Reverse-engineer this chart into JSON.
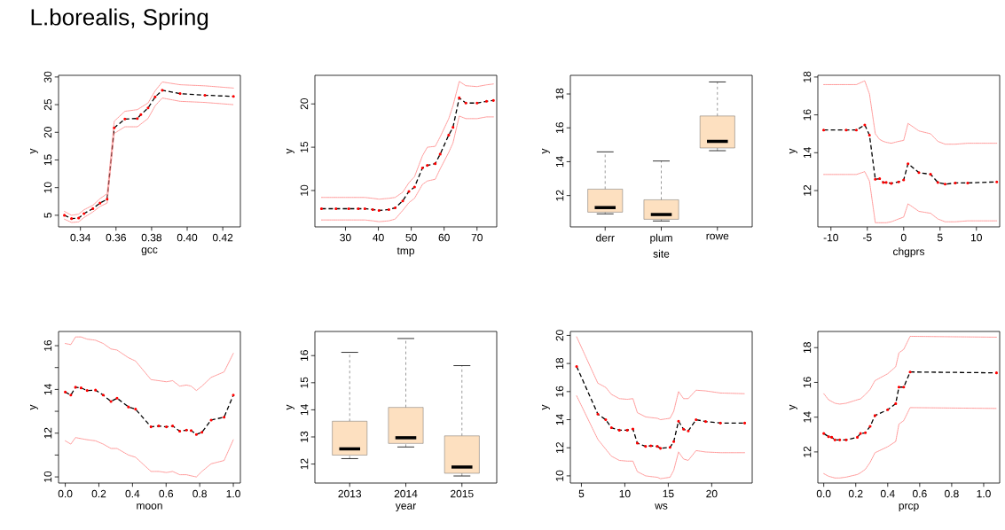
{
  "chart_data": [
    {
      "type": "line",
      "title": "L.borealis, Spring",
      "xlabel": "gcc",
      "ylabel": "y",
      "xlim": [
        0.3277,
        0.4299
      ],
      "ylim": [
        2.9,
        30.3
      ],
      "xticks": [
        0.34,
        0.36,
        0.38,
        {
          "value": 0.4,
          "label": "0.40"
        },
        0.42
      ],
      "yticks": [
        5,
        10,
        15,
        20,
        25,
        30
      ],
      "line_style": "dashed",
      "marker": "circle",
      "series": [
        {
          "color": "#000000",
          "x": [
            0.331,
            0.335,
            0.339,
            0.342,
            0.347,
            0.351,
            0.355,
            0.359,
            0.365,
            0.372,
            0.374,
            0.378,
            0.382,
            0.386,
            0.396,
            0.41,
            0.426
          ],
          "values": [
            5.0,
            4.4,
            4.5,
            5.3,
            6.2,
            7.2,
            7.9,
            20.8,
            22.4,
            22.5,
            23.2,
            24.4,
            26.4,
            27.6,
            27.0,
            26.7,
            26.5
          ]
        },
        {
          "color": "#ff8080",
          "line_style": "dotted",
          "marker": "none",
          "x": [
            0.331,
            0.335,
            0.339,
            0.342,
            0.347,
            0.351,
            0.355,
            0.359,
            0.365,
            0.372,
            0.374,
            0.378,
            0.382,
            0.386,
            0.396,
            0.41,
            0.426
          ],
          "values": [
            5.7,
            5.0,
            5.2,
            6.0,
            6.8,
            8.0,
            8.9,
            22.0,
            23.8,
            24.1,
            24.5,
            25.3,
            27.5,
            29.1,
            28.6,
            28.4,
            28.0
          ]
        },
        {
          "color": "#ff8080",
          "line_style": "dotted",
          "marker": "none",
          "x": [
            0.331,
            0.335,
            0.339,
            0.342,
            0.347,
            0.351,
            0.355,
            0.359,
            0.365,
            0.372,
            0.374,
            0.378,
            0.382,
            0.386,
            0.396,
            0.41,
            0.426
          ],
          "values": [
            4.3,
            3.7,
            3.8,
            4.6,
            5.6,
            6.6,
            7.2,
            19.8,
            21.0,
            21.0,
            21.5,
            22.5,
            24.8,
            26.2,
            25.6,
            25.4,
            25.0
          ]
        }
      ]
    },
    {
      "type": "line",
      "xlabel": "tmp",
      "ylabel": "y",
      "xlim": [
        20.7,
        76
      ],
      "ylim": [
        5.8,
        23.3
      ],
      "xticks": [
        30,
        40,
        50,
        60,
        70
      ],
      "yticks": [
        10,
        15,
        20
      ],
      "line_style": "dashed",
      "marker": "circle",
      "series": [
        {
          "color": "#000000",
          "x": [
            22.7,
            27.1,
            31,
            33.9,
            35.9,
            38.3,
            40.2,
            43.2,
            45.1,
            47.4,
            49.3,
            51,
            53.4,
            54.9,
            57.3,
            58.8,
            61.4,
            62.7,
            64.6,
            66.6,
            70,
            72.9,
            75
          ],
          "values": [
            7.9,
            7.9,
            7.9,
            7.9,
            7.9,
            7.8,
            7.7,
            7.8,
            8.0,
            8.8,
            9.9,
            10.4,
            12.6,
            12.9,
            13.1,
            14.2,
            16.4,
            17.3,
            20.7,
            20.1,
            20.1,
            20.3,
            20.4
          ]
        },
        {
          "color": "#ff8080",
          "line_style": "dotted",
          "marker": "none",
          "x": [
            22.7,
            27.1,
            31,
            33.9,
            35.9,
            38.3,
            40.2,
            43.2,
            45.1,
            47.4,
            49.3,
            51,
            53.4,
            54.9,
            57.3,
            58.8,
            61.4,
            62.7,
            64.6,
            66.6,
            70,
            72.9,
            75
          ],
          "values": [
            9.2,
            9.2,
            9.2,
            9.2,
            9.2,
            9.1,
            9.0,
            9.1,
            9.2,
            9.8,
            10.9,
            11.6,
            14.0,
            15.0,
            15.1,
            16.2,
            18.3,
            19.8,
            22.6,
            22.1,
            22.0,
            22.2,
            22.3
          ]
        },
        {
          "color": "#ff8080",
          "line_style": "dotted",
          "marker": "none",
          "x": [
            22.7,
            27.1,
            31,
            33.9,
            35.9,
            38.3,
            40.2,
            43.2,
            45.1,
            47.4,
            49.3,
            51,
            53.4,
            54.9,
            57.3,
            58.8,
            61.4,
            62.7,
            64.6,
            66.6,
            70,
            72.9,
            75
          ],
          "values": [
            6.6,
            6.6,
            6.6,
            6.6,
            6.6,
            6.5,
            6.4,
            6.5,
            6.7,
            7.7,
            8.6,
            9.1,
            10.7,
            11.1,
            11.3,
            12.5,
            14.4,
            15.5,
            18.6,
            18.3,
            18.3,
            18.5,
            18.5
          ]
        }
      ]
    },
    {
      "type": "box",
      "xlabel": "site",
      "ylabel": "y",
      "categories": [
        "derr",
        "plum",
        "rowe"
      ],
      "ylim": [
        10.15,
        19.1
      ],
      "yticks": [
        12,
        14,
        16,
        18
      ],
      "color": "#fde0c0",
      "boxes": [
        {
          "low": 10.92,
          "q1": 11.02,
          "median": 11.29,
          "q3": 12.38,
          "high": 14.58
        },
        {
          "low": 10.5,
          "q1": 10.6,
          "median": 10.88,
          "q3": 11.75,
          "high": 14.04
        },
        {
          "low": 14.65,
          "q1": 14.81,
          "median": 15.2,
          "q3": 16.7,
          "high": 18.71
        }
      ]
    },
    {
      "type": "line",
      "xlabel": "chgprs",
      "ylabel": "y",
      "xlim": [
        -11.8,
        13.2
      ],
      "ylim": [
        10.08,
        18.09
      ],
      "xticks": [
        -10,
        -5,
        0,
        5,
        10
      ],
      "yticks": [
        12,
        14,
        16,
        18
      ],
      "line_style": "dashed",
      "marker": "circle",
      "series": [
        {
          "color": "#000000",
          "x": [
            -11,
            -7.9,
            -6.5,
            -5.35,
            -4.7,
            -3.9,
            -3.3,
            -2.8,
            -2.4,
            -1.7,
            -0.7,
            0,
            0.6,
            2.1,
            3.7,
            4.7,
            5.7,
            7.1,
            8.8,
            12.8
          ],
          "values": [
            15.2,
            15.2,
            15.2,
            15.47,
            14.93,
            12.6,
            12.63,
            12.43,
            12.43,
            12.38,
            12.46,
            12.56,
            13.42,
            12.95,
            12.86,
            12.43,
            12.34,
            12.4,
            12.4,
            12.46
          ]
        },
        {
          "color": "#ff8080",
          "line_style": "dotted",
          "marker": "none",
          "x": [
            -11,
            -7.9,
            -6.5,
            -5.35,
            -4.7,
            -3.9,
            -3.3,
            -2.8,
            -2.4,
            -1.7,
            -0.7,
            0,
            0.6,
            2.1,
            3.7,
            4.7,
            5.7,
            7.1,
            8.8,
            12.8
          ],
          "values": [
            17.6,
            17.6,
            17.6,
            17.8,
            17.1,
            15.0,
            14.7,
            14.6,
            14.55,
            14.5,
            14.6,
            14.65,
            15.55,
            15.15,
            15.0,
            14.6,
            14.45,
            14.45,
            14.5,
            14.5
          ]
        },
        {
          "color": "#ff8080",
          "line_style": "dotted",
          "marker": "none",
          "x": [
            -11,
            -7.9,
            -6.5,
            -5.35,
            -4.7,
            -3.9,
            -3.3,
            -2.8,
            -2.4,
            -1.7,
            -0.7,
            0,
            0.6,
            2.1,
            3.7,
            4.7,
            5.7,
            7.1,
            8.8,
            12.8
          ],
          "values": [
            12.85,
            12.85,
            12.85,
            13.0,
            12.5,
            10.3,
            10.3,
            10.3,
            10.3,
            10.35,
            10.5,
            10.6,
            11.3,
            10.9,
            10.8,
            10.5,
            10.35,
            10.35,
            10.4,
            10.4
          ]
        }
      ]
    },
    {
      "type": "line",
      "xlabel": "moon",
      "ylabel": "y",
      "xlim": [
        -0.04,
        1.042
      ],
      "ylim": [
        9.72,
        16.65
      ],
      "xticks": [
        {
          "value": 0,
          "label": "0.0"
        },
        0.2,
        0.4,
        0.6,
        0.8,
        {
          "value": 1,
          "label": "1.0"
        }
      ],
      "yticks": [
        10,
        {
          "value": 11,
          "label": null
        },
        12,
        {
          "value": 13,
          "label": null
        },
        14,
        {
          "value": 15,
          "label": null
        },
        16
      ],
      "line_style": "dashed",
      "marker": "circle",
      "series": [
        {
          "color": "#000000",
          "x": [
            0,
            0.033,
            0.061,
            0.094,
            0.13,
            0.18,
            0.226,
            0.272,
            0.308,
            0.376,
            0.418,
            0.51,
            0.556,
            0.602,
            0.639,
            0.681,
            0.721,
            0.749,
            0.78,
            0.813,
            0.868,
            0.945,
            1.0
          ],
          "values": [
            13.88,
            13.74,
            14.1,
            14.07,
            13.95,
            13.97,
            13.74,
            13.45,
            13.6,
            13.2,
            13.1,
            12.29,
            12.33,
            12.29,
            12.33,
            12.09,
            12.14,
            12.12,
            11.94,
            12.04,
            12.6,
            12.73,
            13.74
          ]
        },
        {
          "color": "#ff8080",
          "line_style": "dotted",
          "marker": "none",
          "x": [
            0,
            0.033,
            0.061,
            0.094,
            0.13,
            0.18,
            0.226,
            0.272,
            0.308,
            0.376,
            0.418,
            0.51,
            0.556,
            0.602,
            0.639,
            0.681,
            0.721,
            0.749,
            0.78,
            0.813,
            0.868,
            0.945,
            1.0
          ],
          "values": [
            16.1,
            16.05,
            16.4,
            16.4,
            16.3,
            16.25,
            16.1,
            15.85,
            15.8,
            15.45,
            15.3,
            14.45,
            14.4,
            14.35,
            14.4,
            14.15,
            14.2,
            14.15,
            13.95,
            14.15,
            14.55,
            14.8,
            15.65
          ]
        },
        {
          "color": "#ff8080",
          "line_style": "dotted",
          "marker": "none",
          "x": [
            0,
            0.033,
            0.061,
            0.094,
            0.13,
            0.18,
            0.226,
            0.272,
            0.308,
            0.376,
            0.418,
            0.51,
            0.556,
            0.602,
            0.639,
            0.681,
            0.721,
            0.749,
            0.78,
            0.813,
            0.868,
            0.945,
            1.0
          ],
          "values": [
            11.65,
            11.5,
            11.8,
            11.75,
            11.7,
            11.65,
            11.5,
            11.3,
            11.3,
            11.0,
            10.9,
            10.25,
            10.25,
            10.2,
            10.25,
            10.1,
            10.1,
            10.05,
            10.0,
            10.25,
            10.6,
            10.75,
            11.7
          ]
        }
      ]
    },
    {
      "type": "box",
      "xlabel": "year",
      "ylabel": "y",
      "categories": [
        "2013",
        "2014",
        "2015"
      ],
      "ylim": [
        11.3,
        16.89
      ],
      "yticks": [
        12,
        13,
        14,
        15,
        16
      ],
      "color": "#fde0c0",
      "boxes": [
        {
          "low": 12.2,
          "q1": 12.33,
          "median": 12.56,
          "q3": 13.58,
          "high": 16.12
        },
        {
          "low": 12.63,
          "q1": 12.76,
          "median": 12.97,
          "q3": 14.09,
          "high": 16.63
        },
        {
          "low": 11.56,
          "q1": 11.66,
          "median": 11.89,
          "q3": 13.04,
          "high": 15.63
        }
      ]
    },
    {
      "type": "line",
      "xlabel": "ws",
      "ylabel": "y",
      "xlim": [
        3.73,
        24.66
      ],
      "ylim": [
        9.49,
        20.28
      ],
      "xticks": [
        5,
        10,
        15,
        20
      ],
      "yticks": [
        10,
        12,
        14,
        16,
        18,
        20
      ],
      "line_style": "dashed",
      "marker": "circle",
      "series": [
        {
          "color": "#000000",
          "x": [
            4.45,
            6.89,
            7.8,
            8.46,
            9.37,
            10.28,
            10.93,
            11.44,
            12.39,
            13.0,
            13.74,
            14.1,
            15.2,
            15.63,
            16.18,
            16.76,
            17.3,
            18.2,
            19.3,
            21.0,
            23.8
          ],
          "values": [
            17.79,
            14.4,
            14.0,
            13.43,
            13.25,
            13.25,
            13.34,
            12.33,
            12.1,
            12.14,
            12.1,
            11.96,
            12.03,
            12.44,
            13.89,
            13.32,
            13.2,
            14.0,
            13.87,
            13.76,
            13.76
          ]
        },
        {
          "color": "#ff8080",
          "line_style": "dotted",
          "marker": "none",
          "x": [
            4.45,
            6.89,
            7.8,
            8.46,
            9.37,
            10.28,
            10.93,
            11.44,
            12.39,
            13.0,
            13.74,
            14.1,
            15.2,
            15.63,
            16.18,
            16.76,
            17.3,
            18.2,
            19.3,
            21.0,
            23.8
          ],
          "values": [
            19.9,
            16.6,
            16.3,
            15.8,
            15.5,
            15.45,
            15.5,
            14.5,
            14.2,
            14.15,
            14.1,
            14.0,
            14.1,
            14.6,
            16.0,
            15.5,
            15.5,
            16.1,
            16.05,
            15.9,
            15.85
          ]
        },
        {
          "color": "#ff8080",
          "line_style": "dotted",
          "marker": "none",
          "x": [
            4.45,
            6.89,
            7.8,
            8.46,
            9.37,
            10.28,
            10.93,
            11.44,
            12.39,
            13.0,
            13.74,
            14.1,
            15.2,
            15.63,
            16.18,
            16.76,
            17.3,
            18.2,
            19.3,
            21.0,
            23.8
          ],
          "values": [
            15.7,
            12.6,
            11.9,
            11.4,
            11.1,
            11.05,
            11.05,
            10.3,
            10.0,
            9.95,
            9.9,
            9.8,
            9.9,
            10.4,
            11.7,
            11.2,
            11.1,
            11.8,
            11.7,
            11.65,
            11.65
          ]
        }
      ]
    },
    {
      "type": "line",
      "xlabel": "prcp",
      "ylabel": "y",
      "xlim": [
        -0.037,
        1.1
      ],
      "ylim": [
        10.21,
        18.93
      ],
      "xticks": [
        {
          "value": 0,
          "label": "0.0"
        },
        0.2,
        0.4,
        0.6,
        0.8,
        {
          "value": 1,
          "label": "1.0"
        }
      ],
      "yticks": [
        12,
        14,
        16,
        18
      ],
      "line_style": "dashed",
      "marker": "circle",
      "series": [
        {
          "color": "#000000",
          "x": [
            0,
            0.03,
            0.05,
            0.07,
            0.1,
            0.14,
            0.21,
            0.23,
            0.26,
            0.29,
            0.32,
            0.4,
            0.45,
            0.47,
            0.5,
            0.54,
            1.08
          ],
          "values": [
            13.06,
            12.88,
            12.84,
            12.69,
            12.69,
            12.69,
            12.84,
            13.06,
            13.1,
            13.47,
            14.09,
            14.43,
            14.78,
            15.73,
            15.73,
            16.6,
            16.55
          ]
        },
        {
          "color": "#ff8080",
          "line_style": "dotted",
          "marker": "none",
          "x": [
            0,
            0.03,
            0.05,
            0.07,
            0.1,
            0.14,
            0.21,
            0.23,
            0.26,
            0.29,
            0.32,
            0.4,
            0.45,
            0.47,
            0.5,
            0.54,
            1.08
          ],
          "values": [
            15.35,
            15.0,
            14.9,
            14.8,
            14.75,
            14.8,
            15.0,
            15.05,
            15.3,
            15.6,
            16.1,
            16.5,
            16.9,
            17.7,
            17.9,
            18.65,
            18.6
          ]
        },
        {
          "color": "#ff8080",
          "line_style": "dotted",
          "marker": "none",
          "x": [
            0,
            0.03,
            0.05,
            0.07,
            0.1,
            0.14,
            0.21,
            0.23,
            0.26,
            0.29,
            0.32,
            0.4,
            0.45,
            0.47,
            0.5,
            0.54,
            1.08
          ],
          "values": [
            10.75,
            10.6,
            10.55,
            10.5,
            10.5,
            10.55,
            10.7,
            10.8,
            11.0,
            11.4,
            11.95,
            12.3,
            12.6,
            13.6,
            13.8,
            14.55,
            14.5
          ]
        }
      ]
    }
  ]
}
